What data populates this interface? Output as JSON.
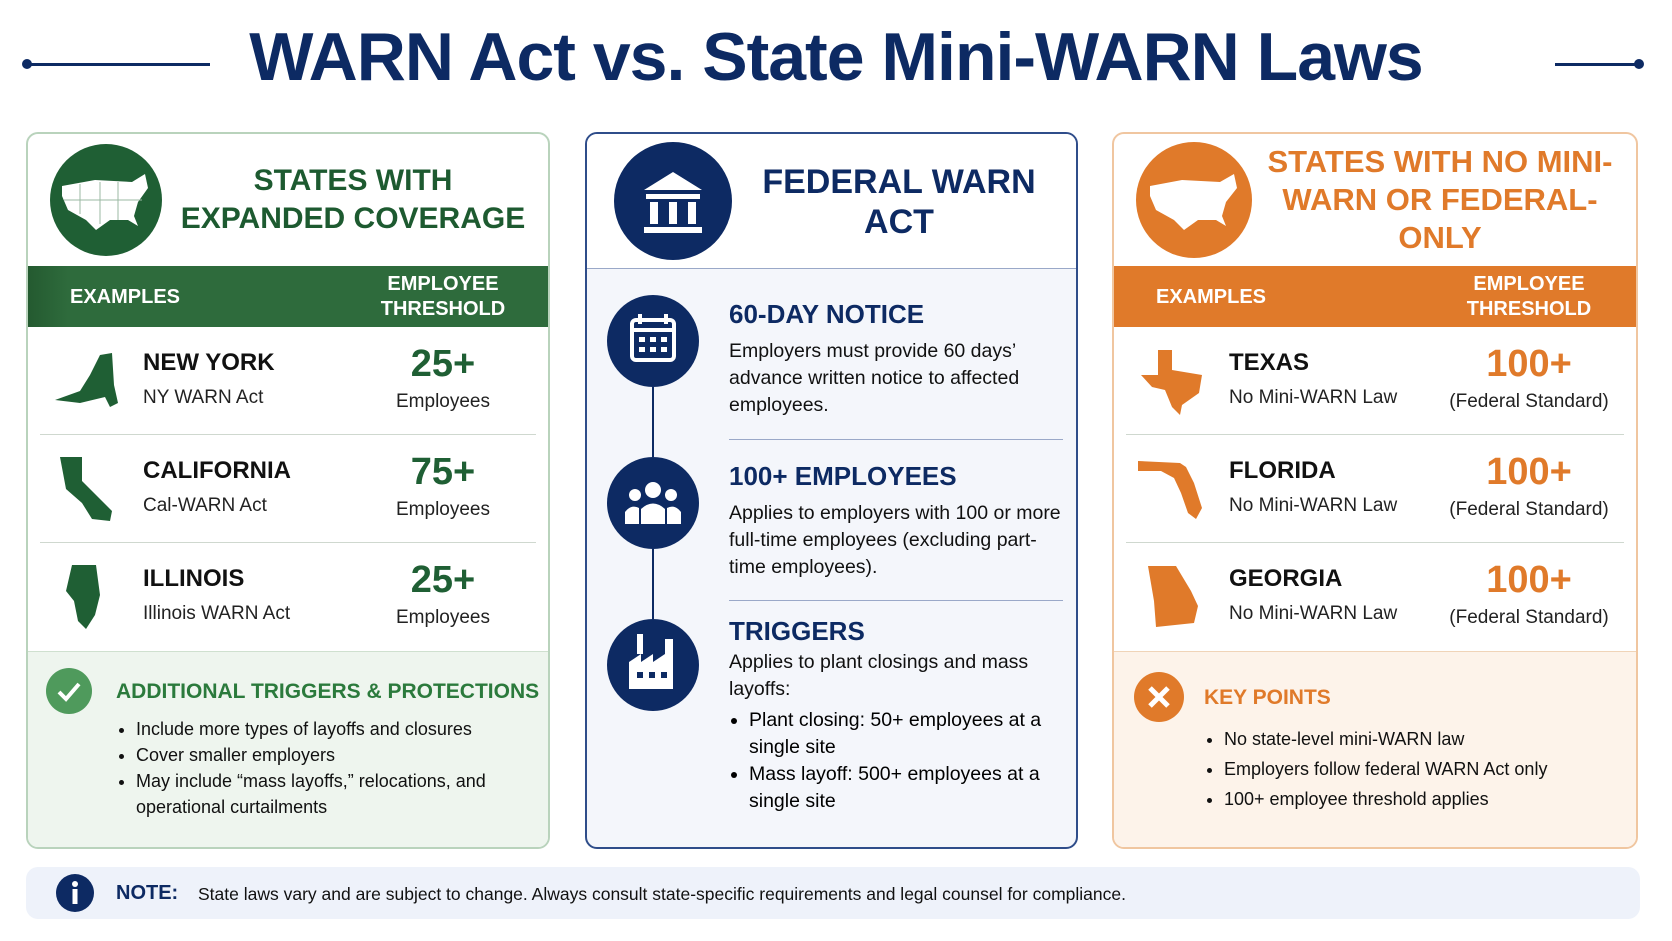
{
  "title": "WARN Act vs. State Mini-WARN Laws",
  "left": {
    "heading": "STATES WITH EXPANDED COVERAGE",
    "columns": [
      "EXAMPLES",
      "EMPLOYEE THRESHOLD"
    ],
    "rows": [
      {
        "state": "NEW YORK",
        "law": "NY WARN Act",
        "threshold": "25+",
        "unit": "Employees"
      },
      {
        "state": "CALIFORNIA",
        "law": "Cal-WARN Act",
        "threshold": "75+",
        "unit": "Employees"
      },
      {
        "state": "ILLINOIS",
        "law": "Illinois WARN Act",
        "threshold": "25+",
        "unit": "Employees"
      }
    ],
    "extra": {
      "title": "ADDITIONAL TRIGGERS & PROTECTIONS",
      "items": [
        "Include more types of layoffs and closures",
        "Cover smaller employers",
        "May include “mass layoffs,” relocations, and operational curtailments"
      ]
    }
  },
  "center": {
    "heading": "FEDERAL WARN ACT",
    "sections": [
      {
        "title": "60-DAY NOTICE",
        "text": "Employers must provide 60 days’ advance written notice to affected employees."
      },
      {
        "title": "100+ EMPLOYEES",
        "text": "Applies to employers with 100 or more full-time employees (excluding part-time employees)."
      },
      {
        "title": "TRIGGERS",
        "text": "Applies to plant closings and mass layoffs:",
        "items": [
          "Plant closing: 50+ employees at a single site",
          "Mass layoff: 500+ employees at a single site"
        ]
      }
    ]
  },
  "right": {
    "heading": "STATES WITH NO MINI-WARN OR FEDERAL-ONLY",
    "columns": [
      "EXAMPLES",
      "EMPLOYEE THRESHOLD"
    ],
    "rows": [
      {
        "state": "TEXAS",
        "law": "No Mini-WARN Law",
        "threshold": "100+",
        "unit": "(Federal Standard)"
      },
      {
        "state": "FLORIDA",
        "law": "No Mini-WARN Law",
        "threshold": "100+",
        "unit": "(Federal Standard)"
      },
      {
        "state": "GEORGIA",
        "law": "No Mini-WARN Law",
        "threshold": "100+",
        "unit": "(Federal Standard)"
      }
    ],
    "extra": {
      "title": "KEY POINTS",
      "items": [
        "No state-level mini-WARN law",
        "Employers follow federal WARN Act only",
        "100+ employee threshold applies"
      ]
    }
  },
  "note": {
    "label": "NOTE:",
    "text": "State laws vary and are subject to change. Always consult state-specific requirements and legal counsel for compliance."
  }
}
